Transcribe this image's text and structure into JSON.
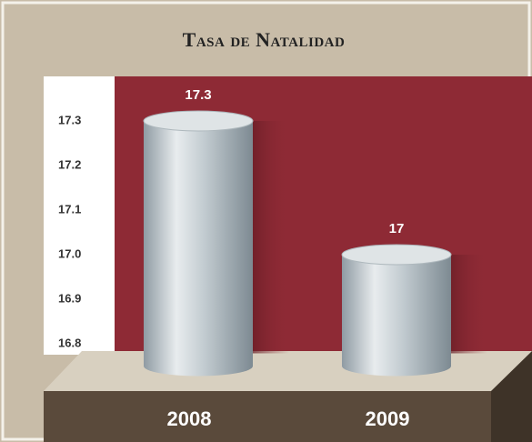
{
  "chart_data": {
    "type": "bar",
    "title": "Tasa de Natalidad",
    "categories": [
      "2008",
      "2009"
    ],
    "values": [
      17.3,
      17
    ],
    "ylim": [
      16.75,
      17.4
    ],
    "yticks": [
      16.8,
      16.9,
      {
        "value": 17,
        "label": "17.0"
      },
      17.1,
      17.2,
      17.3
    ],
    "color": "#b9c3c8"
  }
}
